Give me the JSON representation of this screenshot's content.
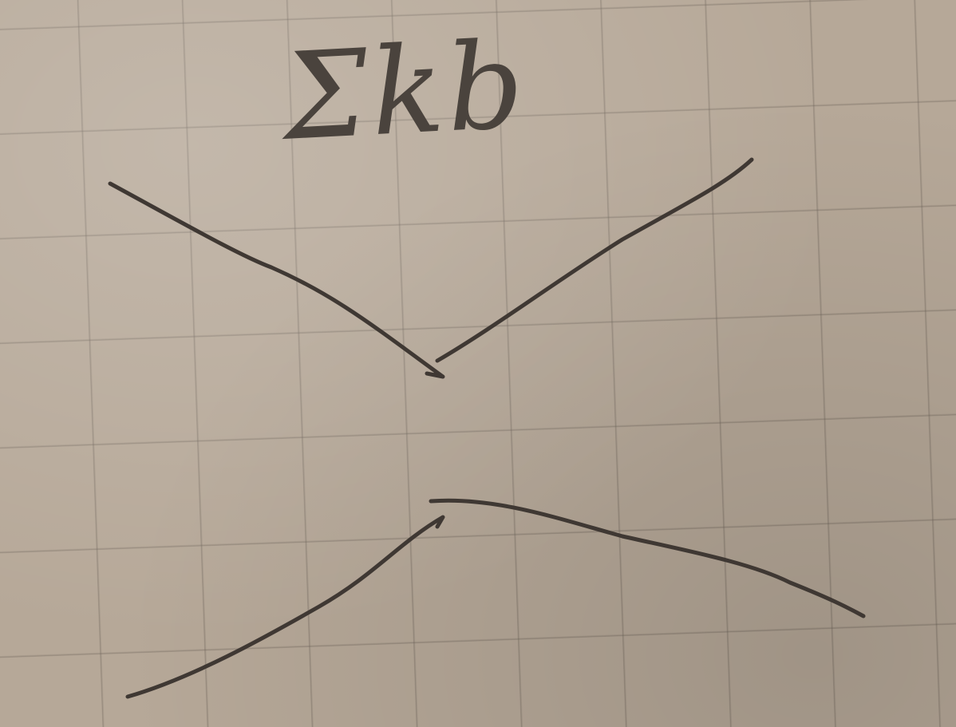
{
  "sketch": {
    "label": "Σkb"
  }
}
